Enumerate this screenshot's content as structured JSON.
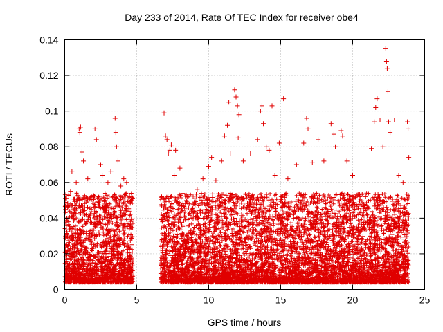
{
  "chart_data": {
    "type": "scatter",
    "title": "Day 233 of 2014, Rate Of TEC Index for receiver obe4",
    "xlabel": "GPS time / hours",
    "ylabel": "ROTI / TECUs",
    "xlim": [
      0,
      25
    ],
    "ylim": [
      0,
      0.14
    ],
    "x_ticks": [
      0,
      5,
      10,
      15,
      20,
      25
    ],
    "x_tick_labels": [
      "0",
      "5",
      "10",
      "15",
      "20",
      "25"
    ],
    "y_ticks": [
      0,
      0.02,
      0.04,
      0.06,
      0.08,
      0.1,
      0.12,
      0.14
    ],
    "y_tick_labels": [
      "0",
      "0.02",
      "0.04",
      "0.06",
      "0.08",
      "0.1",
      "0.12",
      "0.14"
    ],
    "grid": true,
    "marker": "+",
    "marker_color": "#e00000",
    "data_gaps_hours": [
      [
        4.75,
        6.65
      ]
    ],
    "points": [
      [
        0.2,
        0.046
      ],
      [
        0.4,
        0.055
      ],
      [
        0.5,
        0.066
      ],
      [
        0.8,
        0.06
      ],
      [
        1.0,
        0.09
      ],
      [
        1.05,
        0.088
      ],
      [
        1.1,
        0.091
      ],
      [
        1.2,
        0.077
      ],
      [
        1.3,
        0.072
      ],
      [
        1.6,
        0.062
      ],
      [
        2.1,
        0.09
      ],
      [
        2.2,
        0.084
      ],
      [
        2.5,
        0.07
      ],
      [
        2.6,
        0.064
      ],
      [
        3.0,
        0.06
      ],
      [
        3.2,
        0.066
      ],
      [
        3.5,
        0.096
      ],
      [
        3.55,
        0.088
      ],
      [
        3.6,
        0.08
      ],
      [
        3.7,
        0.072
      ],
      [
        3.9,
        0.058
      ],
      [
        4.1,
        0.062
      ],
      [
        4.3,
        0.06
      ],
      [
        4.5,
        0.052
      ],
      [
        6.9,
        0.099
      ],
      [
        7.0,
        0.086
      ],
      [
        7.1,
        0.084
      ],
      [
        7.2,
        0.076
      ],
      [
        7.3,
        0.078
      ],
      [
        7.4,
        0.081
      ],
      [
        7.6,
        0.064
      ],
      [
        7.7,
        0.078
      ],
      [
        8.0,
        0.068
      ],
      [
        8.5,
        0.052
      ],
      [
        9.2,
        0.056
      ],
      [
        9.6,
        0.062
      ],
      [
        10.0,
        0.069
      ],
      [
        10.2,
        0.074
      ],
      [
        10.5,
        0.061
      ],
      [
        10.9,
        0.072
      ],
      [
        11.1,
        0.086
      ],
      [
        11.3,
        0.092
      ],
      [
        11.4,
        0.105
      ],
      [
        11.5,
        0.076
      ],
      [
        11.8,
        0.112
      ],
      [
        11.9,
        0.108
      ],
      [
        12.0,
        0.103
      ],
      [
        12.05,
        0.085
      ],
      [
        12.1,
        0.098
      ],
      [
        12.4,
        0.072
      ],
      [
        12.9,
        0.076
      ],
      [
        13.4,
        0.084
      ],
      [
        13.6,
        0.1
      ],
      [
        13.7,
        0.103
      ],
      [
        13.8,
        0.093
      ],
      [
        14.0,
        0.08
      ],
      [
        14.2,
        0.078
      ],
      [
        14.4,
        0.103
      ],
      [
        14.6,
        0.064
      ],
      [
        14.9,
        0.082
      ],
      [
        15.2,
        0.107
      ],
      [
        15.5,
        0.062
      ],
      [
        16.1,
        0.07
      ],
      [
        16.6,
        0.082
      ],
      [
        16.8,
        0.096
      ],
      [
        16.9,
        0.09
      ],
      [
        17.2,
        0.071
      ],
      [
        17.6,
        0.084
      ],
      [
        18.0,
        0.072
      ],
      [
        18.5,
        0.093
      ],
      [
        18.7,
        0.087
      ],
      [
        18.8,
        0.08
      ],
      [
        19.2,
        0.089
      ],
      [
        19.3,
        0.086
      ],
      [
        19.6,
        0.072
      ],
      [
        20.0,
        0.064
      ],
      [
        20.5,
        0.052
      ],
      [
        20.9,
        0.052
      ],
      [
        21.3,
        0.079
      ],
      [
        21.5,
        0.094
      ],
      [
        21.6,
        0.102
      ],
      [
        21.7,
        0.107
      ],
      [
        21.9,
        0.095
      ],
      [
        22.1,
        0.08
      ],
      [
        22.3,
        0.135
      ],
      [
        22.35,
        0.128
      ],
      [
        22.4,
        0.124
      ],
      [
        22.45,
        0.111
      ],
      [
        22.5,
        0.094
      ],
      [
        22.6,
        0.088
      ],
      [
        22.9,
        0.095
      ],
      [
        23.2,
        0.064
      ],
      [
        23.5,
        0.06
      ],
      [
        23.8,
        0.094
      ],
      [
        23.85,
        0.09
      ],
      [
        23.9,
        0.074
      ]
    ]
  }
}
